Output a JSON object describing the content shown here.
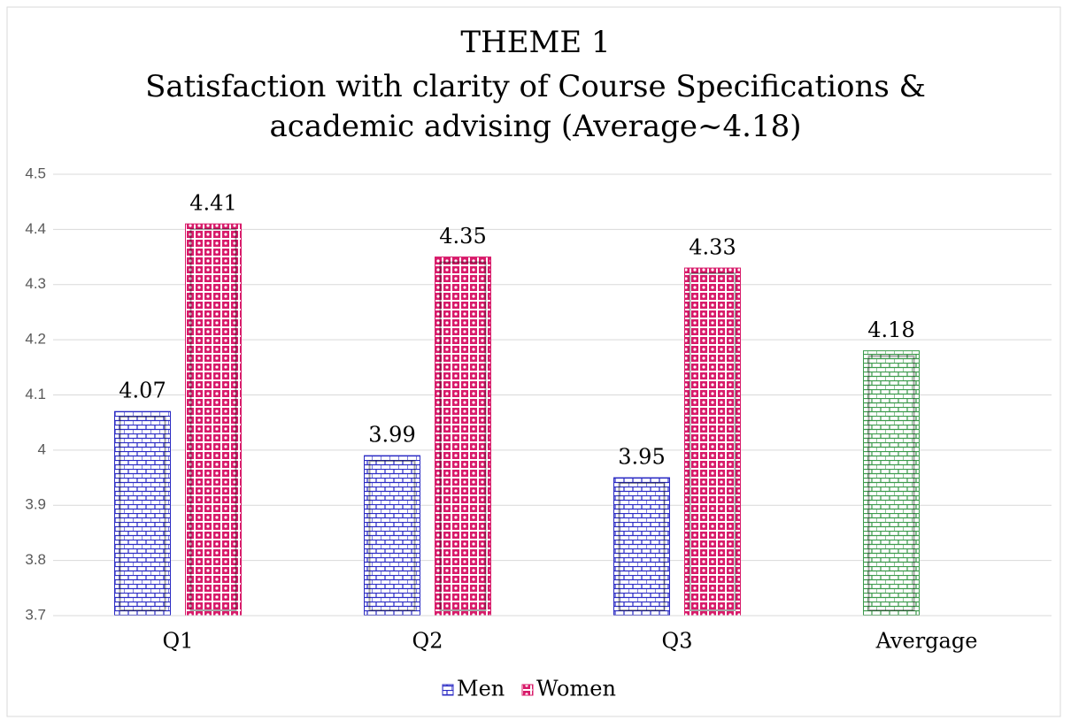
{
  "chart_data": {
    "type": "bar",
    "title": [
      "THEME 1",
      "Satisfaction with clarity of Course Specifications &",
      "academic advising (Average~4.18)"
    ],
    "categories": [
      "Q1",
      "Q2",
      "Q3",
      "Avergage"
    ],
    "series": [
      {
        "name": "Men",
        "color": "#2b2bc4",
        "colors": [
          "#2b2bc4",
          "#2b2bc4",
          "#2b2bc4",
          "#3c9a4c"
        ],
        "values": [
          4.07,
          3.99,
          3.95,
          4.18
        ]
      },
      {
        "name": "Women",
        "color": "#d81b6a",
        "colors": [
          "#d81b6a",
          "#d81b6a",
          "#d81b6a",
          "#d81b6a"
        ],
        "values": [
          4.41,
          4.35,
          4.33,
          null
        ]
      }
    ],
    "ylim": [
      3.7,
      4.5
    ],
    "yticks": [
      3.7,
      3.8,
      3.9,
      4,
      4.1,
      4.2,
      4.3,
      4.4,
      4.5
    ],
    "grid": true,
    "legend": "bottom"
  }
}
